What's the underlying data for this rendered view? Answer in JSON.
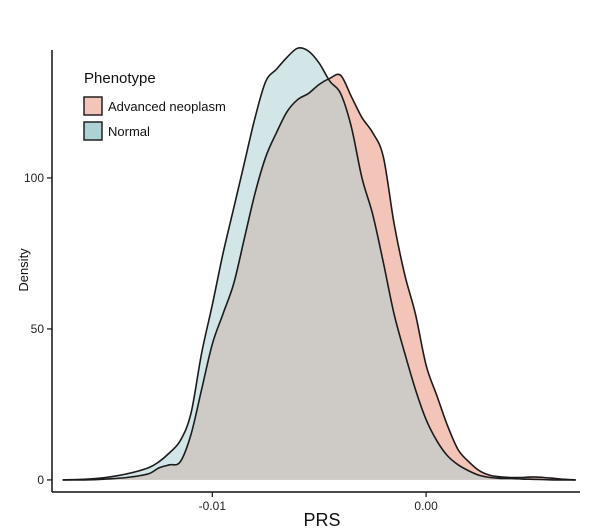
{
  "chart_data": {
    "type": "area",
    "xlabel": "PRS",
    "ylabel": "Density",
    "xlim": [
      -0.0175,
      0.0072
    ],
    "ylim": [
      -4,
      149
    ],
    "x_ticks": [
      -0.01,
      0.0
    ],
    "x_tick_labels": [
      "-0.01",
      "0.00"
    ],
    "y_ticks": [
      0,
      50,
      100
    ],
    "y_tick_labels": [
      "0",
      "50",
      "100"
    ],
    "grid": false,
    "legend": {
      "title": "Phenotype",
      "position": "top-left",
      "entries": [
        "Advanced neoplasm",
        "Normal"
      ]
    },
    "series": [
      {
        "name": "Advanced neoplasm",
        "color": "#f3c4b8",
        "x": [
          -0.017,
          -0.016,
          -0.015,
          -0.014,
          -0.013,
          -0.0125,
          -0.012,
          -0.0115,
          -0.011,
          -0.0105,
          -0.01,
          -0.0095,
          -0.009,
          -0.0085,
          -0.008,
          -0.0075,
          -0.007,
          -0.0065,
          -0.006,
          -0.0055,
          -0.005,
          -0.0045,
          -0.004,
          -0.0035,
          -0.003,
          -0.0025,
          -0.002,
          -0.0015,
          -0.001,
          -0.0005,
          0.0,
          0.0005,
          0.001,
          0.0015,
          0.002,
          0.0025,
          0.003,
          0.0035,
          0.004,
          0.0045,
          0.005,
          0.0055,
          0.006,
          0.0065,
          0.007
        ],
        "values": [
          0,
          0,
          0.3,
          0.8,
          2,
          4,
          5,
          6,
          15,
          30,
          45,
          55,
          65,
          80,
          95,
          107,
          115,
          122,
          126,
          128,
          131,
          133,
          134,
          127,
          120,
          115,
          107,
          85,
          68,
          55,
          38,
          28,
          18,
          10,
          6,
          3,
          1.5,
          1,
          0.8,
          0.8,
          1,
          0.8,
          0.5,
          0.2,
          0
        ]
      },
      {
        "name": "Normal",
        "color": "#aed1d3",
        "x": [
          -0.017,
          -0.016,
          -0.015,
          -0.014,
          -0.013,
          -0.0125,
          -0.012,
          -0.0115,
          -0.011,
          -0.0105,
          -0.01,
          -0.0095,
          -0.009,
          -0.0085,
          -0.008,
          -0.0075,
          -0.007,
          -0.0065,
          -0.006,
          -0.0055,
          -0.005,
          -0.0045,
          -0.004,
          -0.0035,
          -0.003,
          -0.0025,
          -0.002,
          -0.0015,
          -0.001,
          -0.0005,
          0.0,
          0.0005,
          0.001,
          0.0015,
          0.002,
          0.0025,
          0.003,
          0.0035,
          0.004,
          0.0045,
          0.005,
          0.0055,
          0.006,
          0.0065,
          0.007
        ],
        "values": [
          0,
          0.2,
          0.8,
          2,
          4,
          6,
          9,
          13,
          22,
          42,
          58,
          75,
          90,
          105,
          120,
          132,
          136,
          140,
          143,
          142,
          138,
          132,
          128,
          117,
          100,
          88,
          72,
          55,
          42,
          30,
          20,
          13,
          8,
          5,
          3,
          1.5,
          0.8,
          0.5,
          0.5,
          0.3,
          0.2,
          0.1,
          0,
          0,
          0
        ]
      }
    ]
  }
}
